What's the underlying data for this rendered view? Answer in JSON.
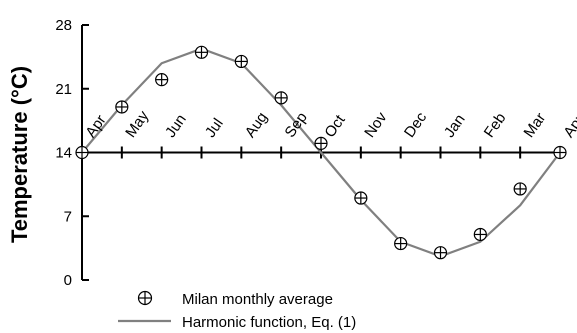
{
  "chart_data": {
    "type": "line",
    "title": "",
    "xlabel": "",
    "ylabel": "Temperature (°C)",
    "ylim": [
      0,
      28
    ],
    "yticks": [
      0,
      7,
      14,
      21,
      28
    ],
    "ytick_labels": [
      "0",
      "7",
      "14",
      "21",
      "28"
    ],
    "x_axis_at_y": 14,
    "categories": [
      "Apr",
      "May",
      "Jun",
      "Jul",
      "Aug",
      "Sep",
      "Oct",
      "Nov",
      "Dec",
      "Jan",
      "Feb",
      "Mar",
      "Apr"
    ],
    "series": [
      {
        "name": "Milan monthly average",
        "kind": "markers",
        "marker": "circle-plus",
        "values": [
          14,
          19,
          22,
          25,
          24,
          20,
          15,
          9,
          4,
          3,
          5,
          10,
          14
        ]
      },
      {
        "name": "Harmonic function, Eq. (1)",
        "kind": "line",
        "color": "#808080",
        "values": [
          14,
          19.2,
          23.8,
          25.4,
          23.8,
          19.2,
          14,
          8.8,
          4.2,
          2.6,
          4.2,
          8.2,
          14
        ]
      }
    ],
    "grid": false,
    "legend_placement": "bottom"
  }
}
